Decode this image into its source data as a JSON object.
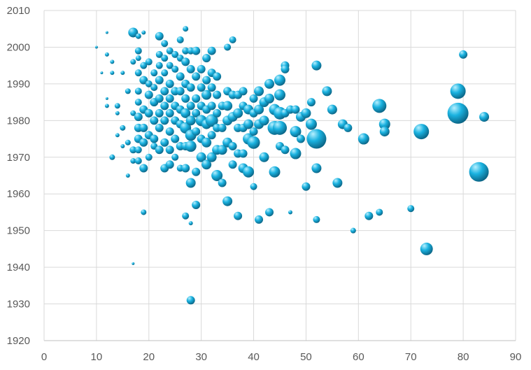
{
  "chart_data": {
    "type": "bubble",
    "title": "",
    "xlabel": "",
    "ylabel": "",
    "xlim": [
      0,
      90
    ],
    "ylim": [
      1920,
      2010
    ],
    "x_ticks": [
      "0",
      "10",
      "20",
      "30",
      "40",
      "50",
      "60",
      "70",
      "80",
      "90"
    ],
    "y_ticks": [
      "1920",
      "1930",
      "1940",
      "1950",
      "1960",
      "1970",
      "1980",
      "1990",
      "2000",
      "2010"
    ],
    "grid": true,
    "legend": "none",
    "bubble_color": "#1ab2e0",
    "bubble_highlight": "#b8f0ff",
    "bubble_shadow": "#0a5f7f",
    "points": [
      [
        10,
        2000,
        2
      ],
      [
        11,
        1993,
        2
      ],
      [
        12,
        2004,
        2
      ],
      [
        12,
        1998,
        3
      ],
      [
        12,
        1986,
        2
      ],
      [
        12,
        1984,
        3
      ],
      [
        13,
        1970,
        4
      ],
      [
        13,
        1993,
        3
      ],
      [
        13,
        1996,
        3
      ],
      [
        14,
        1976,
        3
      ],
      [
        14,
        1984,
        4
      ],
      [
        14,
        1982,
        3
      ],
      [
        15,
        1993,
        3
      ],
      [
        15,
        1973,
        3
      ],
      [
        15,
        1978,
        4
      ],
      [
        16,
        1965,
        3
      ],
      [
        16,
        1974,
        4
      ],
      [
        16,
        1988,
        4
      ],
      [
        17,
        2004,
        7
      ],
      [
        17,
        1996,
        4
      ],
      [
        17,
        1982,
        4
      ],
      [
        17,
        1972,
        5
      ],
      [
        17,
        1969,
        4
      ],
      [
        17,
        1941,
        2
      ],
      [
        18,
        2003,
        4
      ],
      [
        18,
        1999,
        5
      ],
      [
        18,
        1997,
        4
      ],
      [
        18,
        1993,
        5
      ],
      [
        18,
        1988,
        5
      ],
      [
        18,
        1985,
        5
      ],
      [
        18,
        1981,
        6
      ],
      [
        18,
        1978,
        6
      ],
      [
        18,
        1975,
        6
      ],
      [
        18,
        1972,
        5
      ],
      [
        18,
        1969,
        5
      ],
      [
        19,
        2004,
        3
      ],
      [
        19,
        1995,
        5
      ],
      [
        19,
        1991,
        6
      ],
      [
        19,
        1983,
        6
      ],
      [
        19,
        1978,
        6
      ],
      [
        19,
        1974,
        6
      ],
      [
        19,
        1967,
        6
      ],
      [
        19,
        1955,
        4
      ],
      [
        20,
        1996,
        5
      ],
      [
        20,
        1990,
        5
      ],
      [
        20,
        1987,
        6
      ],
      [
        20,
        1982,
        6
      ],
      [
        20,
        1976,
        6
      ],
      [
        20,
        1970,
        5
      ],
      [
        21,
        1993,
        5
      ],
      [
        21,
        1989,
        5
      ],
      [
        21,
        1985,
        6
      ],
      [
        21,
        1980,
        6
      ],
      [
        21,
        1975,
        6
      ],
      [
        21,
        1973,
        5
      ],
      [
        22,
        2003,
        6
      ],
      [
        22,
        1998,
        5
      ],
      [
        22,
        1995,
        5
      ],
      [
        22,
        1991,
        6
      ],
      [
        22,
        1986,
        6
      ],
      [
        22,
        1982,
        6
      ],
      [
        22,
        1978,
        6
      ],
      [
        22,
        1972,
        6
      ],
      [
        23,
        2001,
        5
      ],
      [
        23,
        1997,
        5
      ],
      [
        23,
        1993,
        5
      ],
      [
        23,
        1988,
        6
      ],
      [
        23,
        1984,
        6
      ],
      [
        23,
        1980,
        6
      ],
      [
        23,
        1974,
        6
      ],
      [
        23,
        1967,
        6
      ],
      [
        24,
        1999,
        5
      ],
      [
        24,
        1995,
        5
      ],
      [
        24,
        1990,
        6
      ],
      [
        24,
        1986,
        6
      ],
      [
        24,
        1982,
        6
      ],
      [
        24,
        1977,
        6
      ],
      [
        24,
        1972,
        6
      ],
      [
        24,
        1968,
        6
      ],
      [
        25,
        1998,
        5
      ],
      [
        25,
        1994,
        5
      ],
      [
        25,
        1988,
        6
      ],
      [
        25,
        1984,
        6
      ],
      [
        25,
        1980,
        6
      ],
      [
        25,
        1975,
        6
      ],
      [
        25,
        1970,
        5
      ],
      [
        26,
        2002,
        5
      ],
      [
        26,
        1997,
        5
      ],
      [
        26,
        1992,
        6
      ],
      [
        26,
        1988,
        6
      ],
      [
        26,
        1983,
        6
      ],
      [
        26,
        1979,
        6
      ],
      [
        26,
        1973,
        6
      ],
      [
        26,
        1967,
        5
      ],
      [
        27,
        2005,
        4
      ],
      [
        27,
        1999,
        5
      ],
      [
        27,
        1996,
        6
      ],
      [
        27,
        1990,
        6
      ],
      [
        27,
        1986,
        6
      ],
      [
        27,
        1982,
        7
      ],
      [
        27,
        1978,
        8
      ],
      [
        27,
        1973,
        6
      ],
      [
        27,
        1967,
        6
      ],
      [
        27,
        1954,
        5
      ],
      [
        28,
        1999,
        5
      ],
      [
        28,
        1994,
        6
      ],
      [
        28,
        1989,
        6
      ],
      [
        28,
        1984,
        6
      ],
      [
        28,
        1980,
        7
      ],
      [
        28,
        1976,
        8
      ],
      [
        28,
        1973,
        8
      ],
      [
        28,
        1963,
        7
      ],
      [
        28,
        1952,
        3
      ],
      [
        28,
        1931,
        6
      ],
      [
        29,
        1999,
        6
      ],
      [
        29,
        1992,
        6
      ],
      [
        29,
        1986,
        6
      ],
      [
        29,
        1982,
        6
      ],
      [
        29,
        1977,
        6
      ],
      [
        29,
        1966,
        6
      ],
      [
        29,
        1957,
        6
      ],
      [
        30,
        1994,
        6
      ],
      [
        30,
        1989,
        6
      ],
      [
        30,
        1984,
        6
      ],
      [
        30,
        1980,
        8
      ],
      [
        30,
        1975,
        6
      ],
      [
        30,
        1970,
        7
      ],
      [
        31,
        1997,
        6
      ],
      [
        31,
        1991,
        6
      ],
      [
        31,
        1987,
        7
      ],
      [
        31,
        1983,
        6
      ],
      [
        31,
        1979,
        7
      ],
      [
        31,
        1974,
        7
      ],
      [
        31,
        1968,
        7
      ],
      [
        32,
        1999,
        6
      ],
      [
        32,
        1993,
        6
      ],
      [
        32,
        1989,
        6
      ],
      [
        32,
        1984,
        6
      ],
      [
        32,
        1980,
        9
      ],
      [
        32,
        1976,
        6
      ],
      [
        32,
        1970,
        7
      ],
      [
        33,
        1992,
        6
      ],
      [
        33,
        1987,
        6
      ],
      [
        33,
        1982,
        6
      ],
      [
        33,
        1978,
        6
      ],
      [
        33,
        1972,
        7
      ],
      [
        33,
        1965,
        8
      ],
      [
        34,
        1984,
        6
      ],
      [
        34,
        1978,
        6
      ],
      [
        34,
        1972,
        7
      ],
      [
        34,
        1963,
        6
      ],
      [
        35,
        2000,
        5
      ],
      [
        35,
        1988,
        6
      ],
      [
        35,
        1984,
        7
      ],
      [
        35,
        1980,
        7
      ],
      [
        35,
        1974,
        7
      ],
      [
        35,
        1958,
        7
      ],
      [
        36,
        2002,
        5
      ],
      [
        36,
        1987,
        6
      ],
      [
        36,
        1981,
        7
      ],
      [
        36,
        1973,
        6
      ],
      [
        36,
        1968,
        6
      ],
      [
        37,
        1987,
        6
      ],
      [
        37,
        1982,
        7
      ],
      [
        37,
        1978,
        6
      ],
      [
        37,
        1971,
        6
      ],
      [
        37,
        1954,
        6
      ],
      [
        38,
        1988,
        6
      ],
      [
        38,
        1984,
        6
      ],
      [
        38,
        1978,
        6
      ],
      [
        38,
        1971,
        6
      ],
      [
        38,
        1967,
        7
      ],
      [
        39,
        1983,
        7
      ],
      [
        39,
        1979,
        7
      ],
      [
        39,
        1975,
        8
      ],
      [
        39,
        1966,
        8
      ],
      [
        40,
        1986,
        6
      ],
      [
        40,
        1982,
        6
      ],
      [
        40,
        1977,
        6
      ],
      [
        40,
        1974,
        9
      ],
      [
        40,
        1962,
        5
      ],
      [
        41,
        1988,
        7
      ],
      [
        41,
        1983,
        7
      ],
      [
        41,
        1979,
        7
      ],
      [
        41,
        1953,
        6
      ],
      [
        42,
        1985,
        7
      ],
      [
        42,
        1980,
        7
      ],
      [
        42,
        1970,
        7
      ],
      [
        43,
        1990,
        7
      ],
      [
        43,
        1986,
        7
      ],
      [
        43,
        1955,
        6
      ],
      [
        44,
        1983,
        8
      ],
      [
        44,
        1978,
        10
      ],
      [
        44,
        1966,
        8
      ],
      [
        45,
        1991,
        8
      ],
      [
        45,
        1987,
        8
      ],
      [
        45,
        1982,
        9
      ],
      [
        45,
        1978,
        10
      ],
      [
        45,
        1973,
        6
      ],
      [
        46,
        1995,
        6
      ],
      [
        46,
        1994,
        6
      ],
      [
        46,
        1982,
        6
      ],
      [
        46,
        1972,
        6
      ],
      [
        47,
        1983,
        6
      ],
      [
        47,
        1955,
        3
      ],
      [
        48,
        1983,
        6
      ],
      [
        48,
        1977,
        8
      ],
      [
        48,
        1971,
        8
      ],
      [
        49,
        1981,
        7
      ],
      [
        49,
        1975,
        6
      ],
      [
        50,
        1982,
        7
      ],
      [
        50,
        1962,
        6
      ],
      [
        51,
        1985,
        6
      ],
      [
        51,
        1979,
        8
      ],
      [
        52,
        1995,
        7
      ],
      [
        52,
        1975,
        14
      ],
      [
        52,
        1967,
        7
      ],
      [
        52,
        1953,
        5
      ],
      [
        54,
        1988,
        7
      ],
      [
        55,
        1983,
        7
      ],
      [
        56,
        1963,
        7
      ],
      [
        57,
        1979,
        7
      ],
      [
        58,
        1978,
        6
      ],
      [
        59,
        1950,
        4
      ],
      [
        61,
        1975,
        8
      ],
      [
        62,
        1954,
        6
      ],
      [
        64,
        1984,
        10
      ],
      [
        64,
        1955,
        5
      ],
      [
        65,
        1979,
        8
      ],
      [
        65,
        1977,
        7
      ],
      [
        70,
        1956,
        5
      ],
      [
        72,
        1977,
        11
      ],
      [
        73,
        1945,
        9
      ],
      [
        79,
        1988,
        11
      ],
      [
        79,
        1982,
        15
      ],
      [
        80,
        1998,
        6
      ],
      [
        83,
        1966,
        14
      ],
      [
        84,
        1981,
        7
      ]
    ]
  }
}
